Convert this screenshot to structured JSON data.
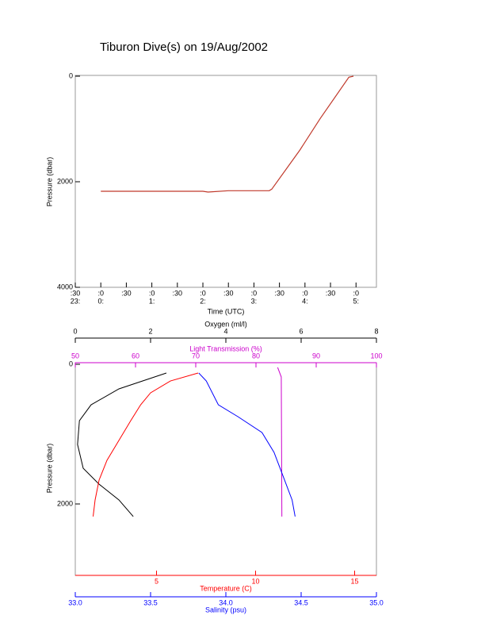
{
  "chart_data": [
    {
      "type": "line",
      "title": "Tiburon Dive(s) on 19/Aug/2002",
      "x_label": "Time (UTC)",
      "y_label": "Pressure (dbar)",
      "xlim": [
        -0.5,
        5.4
      ],
      "ylim": [
        0,
        4000
      ],
      "y_inverted": true,
      "xticks": [
        {
          "value": -0.5,
          "label": ":30"
        },
        {
          "value": 0,
          "label": ":0"
        },
        {
          "value": 0.5,
          "label": ":30"
        },
        {
          "value": 1,
          "label": ":0"
        },
        {
          "value": 1.5,
          "label": ":30"
        },
        {
          "value": 2,
          "label": ":0"
        },
        {
          "value": 2.5,
          "label": ":30"
        },
        {
          "value": 3,
          "label": ":0"
        },
        {
          "value": 3.5,
          "label": ":30"
        },
        {
          "value": 4,
          "label": ":0"
        },
        {
          "value": 4.5,
          "label": ":30"
        },
        {
          "value": 5,
          "label": ":0"
        }
      ],
      "xtick_hours": [
        {
          "value": -0.5,
          "label": "23:"
        },
        {
          "value": 0,
          "label": "0:"
        },
        {
          "value": 1,
          "label": "1:"
        },
        {
          "value": 2,
          "label": "2:"
        },
        {
          "value": 3,
          "label": "3:"
        },
        {
          "value": 4,
          "label": "4:"
        },
        {
          "value": 5,
          "label": "5:"
        }
      ],
      "yticks": [
        0,
        2000,
        4000
      ],
      "series": [
        {
          "color": "#c0392b",
          "x": [
            0,
            1.0,
            2.0,
            2.1,
            2.5,
            3.3,
            3.35,
            3.9,
            4.3,
            4.86,
            4.95
          ],
          "values": [
            2180,
            2180,
            2180,
            2195,
            2170,
            2170,
            2140,
            1400,
            800,
            20,
            0
          ]
        }
      ]
    },
    {
      "type": "profile",
      "y_label": "Pressure (dbar)",
      "ylim": [
        0,
        3000
      ],
      "y_inverted": true,
      "yticks": [
        0,
        2000
      ],
      "axes": [
        {
          "label": "Oxygen (ml/l)",
          "color": "#000000",
          "side": "top",
          "lim": [
            0,
            8
          ],
          "ticks": [
            0,
            2,
            4,
            6,
            8
          ]
        },
        {
          "label": "Light Transmission (%)",
          "color": "#cc00cc",
          "side": "top",
          "lim": [
            50,
            100
          ],
          "ticks": [
            50,
            60,
            70,
            80,
            90,
            100
          ]
        },
        {
          "label": "Temperature (C)",
          "color": "#ff0000",
          "side": "bottom",
          "lim": [
            0.9,
            16.1
          ],
          "ticks": [
            5,
            10,
            15
          ]
        },
        {
          "label": "Salinity (psu)",
          "color": "#0000ff",
          "side": "bottom",
          "lim": [
            33,
            35
          ],
          "ticks": [
            {
              "value": 33,
              "label": "33.0"
            },
            33.5,
            {
              "value": 34,
              "label": "34.0"
            },
            34.5,
            {
              "value": 35,
              "label": "35.0"
            }
          ]
        }
      ],
      "series": [
        {
          "axis": 0,
          "color": "#000000",
          "values": [
            2.42,
            1.16,
            0.42,
            0.11,
            0.06,
            0.21,
            0.63,
            1.16,
            1.54
          ],
          "y": [
            125,
            352,
            580,
            807,
            1148,
            1489,
            1716,
            1943,
            2180
          ]
        },
        {
          "axis": 1,
          "color": "#cc00cc",
          "values": [
            83.6,
            84.2,
            84.3
          ],
          "y": [
            45,
            182,
            2180
          ]
        },
        {
          "axis": 2,
          "color": "#ff0000",
          "values": [
            7.1,
            5.7,
            4.7,
            4.2,
            3.7,
            3.1,
            2.5,
            2.1,
            1.9,
            1.8
          ],
          "y": [
            125,
            239,
            409,
            580,
            807,
            1091,
            1375,
            1659,
            1943,
            2180
          ]
        },
        {
          "axis": 3,
          "color": "#0000ff",
          "values": [
            33.82,
            33.87,
            33.95,
            34.08,
            34.24,
            34.32,
            34.38,
            34.44,
            34.46
          ],
          "y": [
            125,
            239,
            580,
            750,
            977,
            1261,
            1602,
            1943,
            2180
          ]
        }
      ]
    }
  ]
}
